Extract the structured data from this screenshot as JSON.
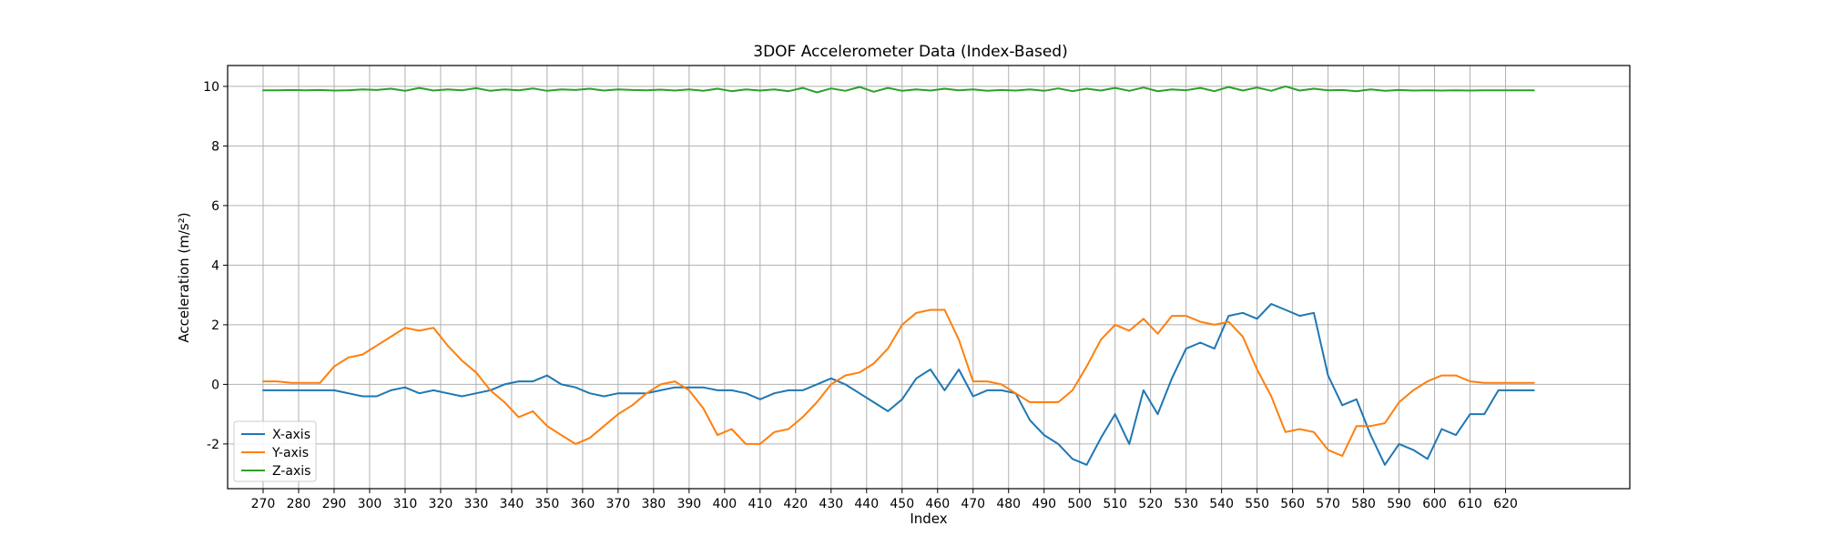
{
  "chart_data": {
    "type": "line",
    "title": "3DOF Accelerometer Data (Index-Based)",
    "xlabel": "Index",
    "ylabel": "Acceleration (m/s²)",
    "xlim": [
      260,
      655
    ],
    "ylim": [
      -3.5,
      10.7
    ],
    "xticks": [
      270,
      280,
      290,
      300,
      310,
      320,
      330,
      340,
      350,
      360,
      370,
      380,
      390,
      400,
      410,
      420,
      430,
      440,
      450,
      460,
      470,
      480,
      490,
      500,
      510,
      520,
      530,
      540,
      550,
      560,
      570,
      580,
      590,
      600,
      610,
      620
    ],
    "yticks": [
      -2,
      0,
      2,
      4,
      6,
      8,
      10
    ],
    "grid": true,
    "legend_position": "lower left",
    "x": [
      270,
      274,
      278,
      282,
      286,
      290,
      294,
      298,
      302,
      306,
      310,
      314,
      318,
      322,
      326,
      330,
      334,
      338,
      342,
      346,
      350,
      354,
      358,
      362,
      366,
      370,
      374,
      378,
      382,
      386,
      390,
      394,
      398,
      402,
      406,
      410,
      414,
      418,
      422,
      426,
      430,
      434,
      438,
      442,
      446,
      450,
      454,
      458,
      462,
      466,
      470,
      474,
      478,
      482,
      486,
      490,
      494,
      498,
      502,
      506,
      510,
      514,
      518,
      522,
      526,
      530,
      534,
      538,
      542,
      546,
      550,
      554,
      558,
      562,
      566,
      570,
      574,
      578,
      582,
      586,
      590,
      594,
      598,
      602,
      606,
      610,
      614,
      618,
      622,
      626,
      628
    ],
    "series": [
      {
        "name": "X-axis",
        "color": "#1f77b4",
        "values": [
          -0.2,
          -0.2,
          -0.2,
          -0.2,
          -0.2,
          -0.2,
          -0.3,
          -0.4,
          -0.4,
          -0.2,
          -0.1,
          -0.3,
          -0.2,
          -0.3,
          -0.4,
          -0.3,
          -0.2,
          0.0,
          0.1,
          0.1,
          0.3,
          0.0,
          -0.1,
          -0.3,
          -0.4,
          -0.3,
          -0.3,
          -0.3,
          -0.2,
          -0.1,
          -0.1,
          -0.1,
          -0.2,
          -0.2,
          -0.3,
          -0.5,
          -0.3,
          -0.2,
          -0.2,
          0.0,
          0.2,
          0.0,
          -0.3,
          -0.6,
          -0.9,
          -0.5,
          0.2,
          0.5,
          -0.2,
          0.5,
          -0.4,
          -0.2,
          -0.2,
          -0.3,
          -1.2,
          -1.7,
          -2.0,
          -2.5,
          -2.7,
          -1.8,
          -1.0,
          -2.0,
          -0.2,
          -1.0,
          0.2,
          1.2,
          1.4,
          1.2,
          2.3,
          2.4,
          2.2,
          2.7,
          2.5,
          2.3,
          2.4,
          0.3,
          -0.7,
          -0.5,
          -1.7,
          -2.7,
          -2.0,
          -2.2,
          -2.5,
          -1.5,
          -1.7,
          -1.0,
          -1.0,
          -0.2,
          -0.2,
          -0.2,
          -0.2
        ]
      },
      {
        "name": "Y-axis",
        "color": "#ff7f0e",
        "values": [
          0.1,
          0.1,
          0.05,
          0.05,
          0.05,
          0.6,
          0.9,
          1.0,
          1.3,
          1.6,
          1.9,
          1.8,
          1.9,
          1.3,
          0.8,
          0.4,
          -0.2,
          -0.6,
          -1.1,
          -0.9,
          -1.4,
          -1.7,
          -2.0,
          -1.8,
          -1.4,
          -1.0,
          -0.7,
          -0.3,
          0.0,
          0.1,
          -0.2,
          -0.8,
          -1.7,
          -1.5,
          -2.0,
          -2.0,
          -1.6,
          -1.5,
          -1.1,
          -0.6,
          0.0,
          0.3,
          0.4,
          0.7,
          1.2,
          2.0,
          2.4,
          2.5,
          2.5,
          1.5,
          0.1,
          0.1,
          0.0,
          -0.3,
          -0.6,
          -0.6,
          -0.6,
          -0.2,
          0.6,
          1.5,
          2.0,
          1.8,
          2.2,
          1.7,
          2.3,
          2.3,
          2.1,
          2.0,
          2.1,
          1.6,
          0.5,
          -0.4,
          -1.6,
          -1.5,
          -1.6,
          -2.2,
          -2.4,
          -1.4,
          -1.4,
          -1.3,
          -0.6,
          -0.2,
          0.1,
          0.3,
          0.3,
          0.1,
          0.05,
          0.05,
          0.05,
          0.05,
          0.05
        ]
      },
      {
        "name": "Z-axis",
        "color": "#2ca02c",
        "values": [
          9.87,
          9.87,
          9.88,
          9.87,
          9.88,
          9.86,
          9.87,
          9.9,
          9.88,
          9.92,
          9.85,
          9.95,
          9.86,
          9.9,
          9.87,
          9.94,
          9.85,
          9.9,
          9.87,
          9.93,
          9.85,
          9.9,
          9.88,
          9.92,
          9.86,
          9.9,
          9.88,
          9.87,
          9.89,
          9.86,
          9.9,
          9.85,
          9.92,
          9.84,
          9.9,
          9.86,
          9.9,
          9.84,
          9.95,
          9.8,
          9.93,
          9.85,
          9.98,
          9.82,
          9.95,
          9.85,
          9.9,
          9.86,
          9.92,
          9.87,
          9.9,
          9.85,
          9.88,
          9.86,
          9.9,
          9.85,
          9.93,
          9.84,
          9.92,
          9.86,
          9.95,
          9.85,
          9.96,
          9.84,
          9.9,
          9.87,
          9.95,
          9.84,
          9.98,
          9.86,
          9.96,
          9.85,
          10.0,
          9.86,
          9.92,
          9.87,
          9.88,
          9.84,
          9.9,
          9.85,
          9.88,
          9.86,
          9.87,
          9.86,
          9.87,
          9.86,
          9.87,
          9.87,
          9.87,
          9.87,
          9.87
        ]
      }
    ]
  }
}
